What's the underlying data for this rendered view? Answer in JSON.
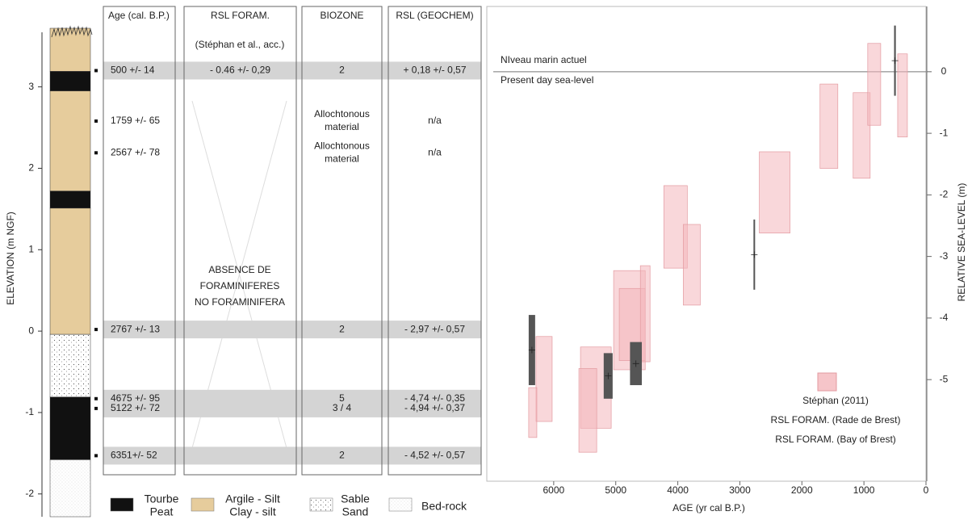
{
  "column": {
    "axis_label": "ELEVATION (m NGF)",
    "ylim": [
      -2.28,
      3.72
    ],
    "yticks": [
      -2,
      -1,
      0,
      1,
      2,
      3
    ],
    "layers": [
      {
        "material": "clay",
        "top": 3.72,
        "bottom": 3.19
      },
      {
        "material": "peat",
        "top": 3.19,
        "bottom": 2.95
      },
      {
        "material": "clay",
        "top": 2.95,
        "bottom": 1.72
      },
      {
        "material": "peat",
        "top": 1.72,
        "bottom": 1.51
      },
      {
        "material": "clay",
        "top": 1.51,
        "bottom": -0.04
      },
      {
        "material": "sand",
        "top": -0.04,
        "bottom": -0.81
      },
      {
        "material": "peat",
        "top": -0.81,
        "bottom": -1.58
      },
      {
        "material": "bedrock",
        "top": -1.58,
        "bottom": -2.28
      }
    ],
    "legend": [
      {
        "material": "peat",
        "lines": [
          "Tourbe",
          "Peat"
        ]
      },
      {
        "material": "clay",
        "lines": [
          "Argile - Silt",
          "Clay - silt"
        ]
      },
      {
        "material": "sand",
        "lines": [
          "Sable",
          "Sand"
        ]
      },
      {
        "material": "bedrock",
        "lines": [
          "Bed-rock"
        ]
      }
    ]
  },
  "table": {
    "headers": [
      "Age (cal. B.P.)",
      "RSL FORAM.",
      "BIOZONE",
      "RSL (GEOCHEM)"
    ],
    "subheader": "(Stéphan et al., acc.)",
    "absence_note": [
      "ABSENCE DE",
      "FORAMINIFERES",
      "NO FORAMINIFERA"
    ],
    "rows": [
      {
        "elevation": 3.2,
        "shaded": true,
        "cells": [
          "500 +/- 14",
          "- 0.46 +/- 0,29",
          "2",
          "+ 0,18 +/- 0,57"
        ]
      },
      {
        "elevation": 2.58,
        "shaded": false,
        "cells": [
          "1759 +/- 65",
          null,
          "Allochtonous material",
          "n/a"
        ]
      },
      {
        "elevation": 2.19,
        "shaded": false,
        "cells": [
          "2567 +/- 78",
          null,
          "Allochtonous material",
          "n/a"
        ]
      },
      {
        "elevation": 0.02,
        "shaded": true,
        "cells": [
          "2767 +/- 13",
          null,
          "2",
          "- 2,97 +/- 0,57"
        ]
      },
      {
        "elevation": -0.83,
        "shaded": true,
        "cells": [
          "4675 +/- 95",
          null,
          "5",
          "- 4,74 +/- 0,35"
        ]
      },
      {
        "elevation": -0.95,
        "shaded": true,
        "cells": [
          "5122 +/- 72",
          null,
          "3 / 4",
          "- 4,94 +/- 0,37"
        ]
      },
      {
        "elevation": -1.53,
        "shaded": true,
        "cells": [
          "6351+/- 52",
          null,
          "2",
          "- 4,52 +/- 0,57"
        ]
      }
    ]
  },
  "chart_data": {
    "type": "range",
    "x_label": "AGE (yr cal B.P.)",
    "y_label": "RELATIVE SEA-LEVEL (m)",
    "xlim": [
      7000,
      0
    ],
    "xticks": [
      6000,
      5000,
      4000,
      3000,
      2000,
      1000,
      0
    ],
    "ylim": [
      -6.65,
      1.06
    ],
    "yticks": [
      -5,
      -4,
      -3,
      -2,
      -1,
      0
    ],
    "reference_line": {
      "value": 0,
      "label_above": "NIveau marin actuel",
      "label_below": "Present day sea-level"
    },
    "series": [
      {
        "name": [
          "Stéphan (2011)"
        ],
        "kind": "box",
        "color": "#f4b6bb",
        "boxes": [
          [
            6285,
            6025,
            -4.3,
            -5.68
          ],
          [
            6403,
            6272,
            -5.13,
            -5.94
          ],
          [
            5568,
            5073,
            -4.47,
            -5.79
          ],
          [
            5594,
            5307,
            -4.82,
            -6.18
          ],
          [
            5034,
            4525,
            -3.23,
            -4.84
          ],
          [
            4943,
            4525,
            -3.52,
            -4.69
          ],
          [
            4603,
            4447,
            -3.15,
            -4.71
          ],
          [
            4225,
            3847,
            -1.85,
            -3.19
          ],
          [
            3912,
            3638,
            -2.48,
            -3.79
          ],
          [
            2686,
            2191,
            -1.3,
            -2.62
          ],
          [
            1708,
            1421,
            -0.2,
            -1.57
          ],
          [
            1174,
            900,
            -0.34,
            -1.73
          ],
          [
            939,
            730,
            0.46,
            -0.87
          ],
          [
            456,
            300,
            0.29,
            -1.06
          ]
        ]
      },
      {
        "name": [
          "RSL FORAM. (Rade de Brest)",
          "RSL FORAM. (Bay of Brest)"
        ],
        "kind": "errorbar",
        "color": "#555555",
        "x": [
          6351,
          5122,
          4675,
          2767,
          500
        ],
        "x_errors": [
          52,
          72,
          95,
          13,
          14
        ],
        "values": [
          -4.52,
          -4.94,
          -4.74,
          -2.97,
          0.18
        ],
        "errors": [
          0.57,
          0.37,
          0.35,
          0.57,
          0.57
        ]
      }
    ]
  }
}
